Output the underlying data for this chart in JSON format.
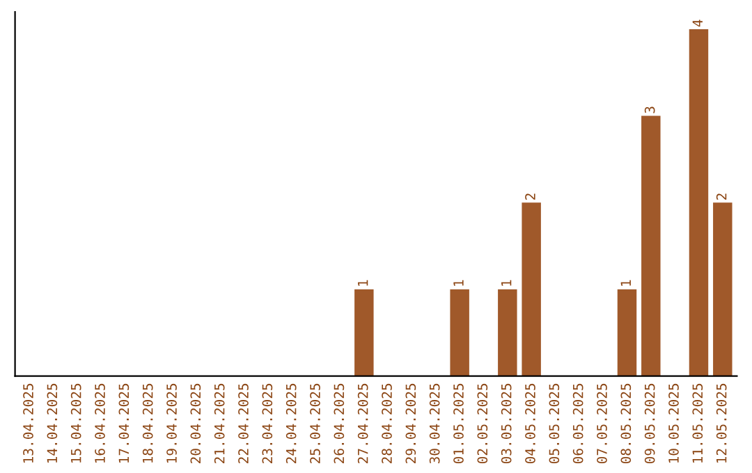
{
  "chart_data": {
    "type": "bar",
    "categories": [
      "13.04.2025",
      "14.04.2025",
      "15.04.2025",
      "16.04.2025",
      "17.04.2025",
      "18.04.2025",
      "19.04.2025",
      "20.04.2025",
      "21.04.2025",
      "22.04.2025",
      "23.04.2025",
      "24.04.2025",
      "25.04.2025",
      "26.04.2025",
      "27.04.2025",
      "28.04.2025",
      "29.04.2025",
      "30.04.2025",
      "01.05.2025",
      "02.05.2025",
      "03.05.2025",
      "04.05.2025",
      "05.05.2025",
      "06.05.2025",
      "07.05.2025",
      "08.05.2025",
      "09.05.2025",
      "10.05.2025",
      "11.05.2025",
      "12.05.2025"
    ],
    "values": [
      null,
      null,
      null,
      null,
      null,
      null,
      null,
      null,
      null,
      null,
      null,
      null,
      null,
      null,
      1,
      null,
      null,
      null,
      1,
      null,
      1,
      2,
      null,
      null,
      null,
      1,
      3,
      null,
      4,
      2
    ],
    "color": "#a0592a",
    "data_labels": true,
    "tick_labels": "x",
    "grid": false,
    "legend": false
  }
}
